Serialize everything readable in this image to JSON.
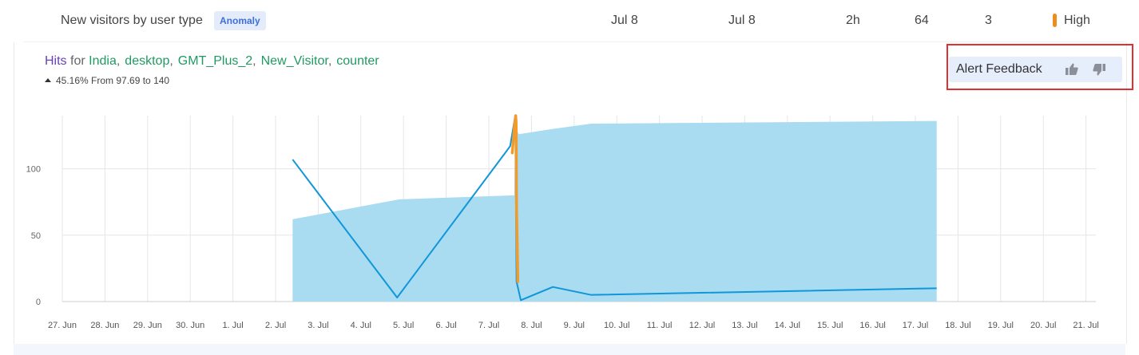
{
  "row": {
    "title": "New visitors by user type",
    "badge": "Anomaly",
    "start": "Jul 8",
    "end": "Jul 8",
    "duration": "2h",
    "score": "64",
    "count": "3",
    "severity": "High",
    "severity_color": "#f08c1a"
  },
  "metric": {
    "name": "Hits",
    "for_word": "for",
    "dimensions": [
      "India",
      "desktop",
      "GMT_Plus_2",
      "New_Visitor",
      "counter"
    ],
    "change": "45.16% From 97.69 to 140"
  },
  "feedback": {
    "label": "Alert Feedback",
    "up_icon": "thumbs-up-icon",
    "down_icon": "thumbs-down-icon"
  },
  "chart_data": {
    "type": "line",
    "x_tick_labels": [
      "27. Jun",
      "28. Jun",
      "29. Jun",
      "30. Jun",
      "1. Jul",
      "2. Jul",
      "3. Jul",
      "4. Jul",
      "5. Jul",
      "6. Jul",
      "7. Jul",
      "8. Jul",
      "9. Jul",
      "10. Jul",
      "11. Jul",
      "12. Jul",
      "13. Jul",
      "14. Jul",
      "15. Jul",
      "16. Jul",
      "17. Jul",
      "18. Jul",
      "19. Jul",
      "20. Jul",
      "21. Jul"
    ],
    "ylim": [
      0,
      140
    ],
    "y_ticks": [
      0,
      50,
      100
    ],
    "grid": true,
    "colors": {
      "line": "#1096d9",
      "band": "#a9dbf1",
      "anomaly": "#f39b28"
    },
    "band": {
      "x": [
        5.4,
        7.9,
        10.6,
        10.62,
        10.7,
        11.5,
        12.4,
        20.5
      ],
      "upper": [
        62,
        77,
        80,
        132,
        126,
        130,
        134,
        136
      ],
      "lower": [
        0,
        0,
        0,
        0,
        0,
        0,
        0,
        0
      ]
    },
    "series": [
      {
        "x": [
          5.4,
          7.85,
          10.5,
          10.62,
          10.65,
          10.75,
          11.5,
          12.4,
          20.5
        ],
        "values": [
          107,
          3,
          117,
          140,
          15,
          1,
          11,
          5,
          10
        ]
      }
    ],
    "anomaly": {
      "x": [
        10.55,
        10.6,
        10.63,
        10.64,
        10.65,
        10.68
      ],
      "values": [
        112,
        132,
        140,
        135,
        70,
        15
      ]
    }
  }
}
